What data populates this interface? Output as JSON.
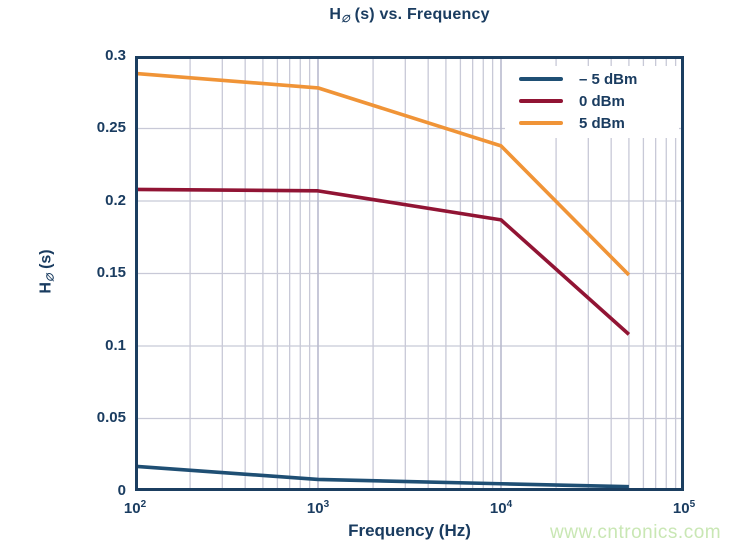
{
  "title": {
    "prefix": "H",
    "sub": "∅",
    "rest": " (s) vs. Frequency"
  },
  "axes": {
    "x_label": "Frequency (Hz)",
    "y_label_prefix": "H",
    "y_label_sub": "∅",
    "y_label_rest": " (s)",
    "y_tick_labels": [
      "0.3",
      "0.25",
      "0.2",
      "0.15",
      "0.1",
      "0.05",
      "0"
    ],
    "x_tick_labels": [
      {
        "base": "10",
        "exp": "2"
      },
      {
        "base": "10",
        "exp": "3"
      },
      {
        "base": "10",
        "exp": "4"
      },
      {
        "base": "10",
        "exp": "5"
      }
    ]
  },
  "colors": {
    "text_navy": "#1a3c60",
    "axis_border": "#1b3e60",
    "grid_minor": "#c8c9d7",
    "grid_major": "#b9bbce",
    "series_neg5": "#1f4f74",
    "series_0": "#911434",
    "series_5": "#f09437",
    "watermark_green": "#c9e7b4",
    "background": "#ffffff"
  },
  "watermark": "www.cntronics.com",
  "chart_data": {
    "type": "line",
    "title": "H∅ (s) vs. Frequency",
    "xlabel": "Frequency (Hz)",
    "ylabel": "H∅ (s)",
    "x_scale": "log",
    "xlim": [
      100,
      100000
    ],
    "ylim": [
      0,
      0.3
    ],
    "grid": true,
    "legend_position": "top-right",
    "y_ticks": [
      0,
      0.05,
      0.1,
      0.15,
      0.2,
      0.25,
      0.3
    ],
    "x_ticks": [
      100,
      1000,
      10000,
      100000
    ],
    "x": [
      100,
      1000,
      10000,
      50000
    ],
    "series": [
      {
        "name": "– 5 dBm",
        "color": "#1f4f74",
        "values": [
          0.017,
          0.008,
          0.005,
          0.003
        ]
      },
      {
        "name": "0 dBm",
        "color": "#911434",
        "values": [
          0.208,
          0.207,
          0.187,
          0.108
        ]
      },
      {
        "name": "5 dBm",
        "color": "#f09437",
        "values": [
          0.288,
          0.278,
          0.238,
          0.149
        ]
      }
    ]
  }
}
